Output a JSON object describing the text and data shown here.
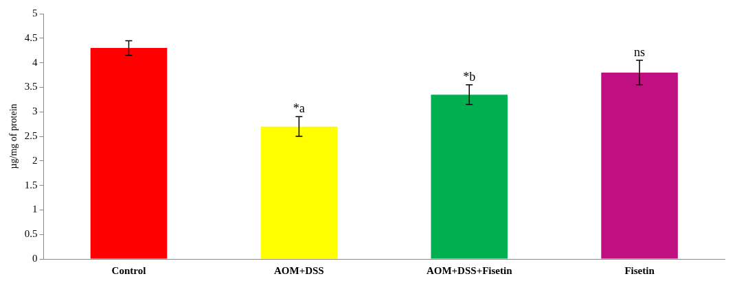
{
  "chart_data": {
    "type": "bar",
    "ylabel": "µg/mg of protein",
    "categories": [
      "Control",
      "AOM+DSS",
      "AOM+DSS+Fisetin",
      "Fisetin"
    ],
    "values": [
      4.3,
      2.7,
      3.35,
      3.8
    ],
    "colors": [
      "#ff0000",
      "#ffff00",
      "#00b050",
      "#c00f80"
    ],
    "errors": [
      0.15,
      0.2,
      0.2,
      0.25
    ],
    "ylim": [
      0,
      5
    ],
    "yticks": [
      0,
      0.5,
      1,
      1.5,
      2,
      2.5,
      3,
      3.5,
      4,
      4.5,
      5
    ],
    "grid": false,
    "legend": false,
    "annotations": [
      {
        "text": "*a",
        "x": "AOM+DSS",
        "y": 2.9
      },
      {
        "text": "*b",
        "x": "AOM+DSS+Fisetin",
        "y": 3.55
      },
      {
        "text": "ns",
        "x": "Fisetin",
        "y": 4.05
      }
    ]
  }
}
